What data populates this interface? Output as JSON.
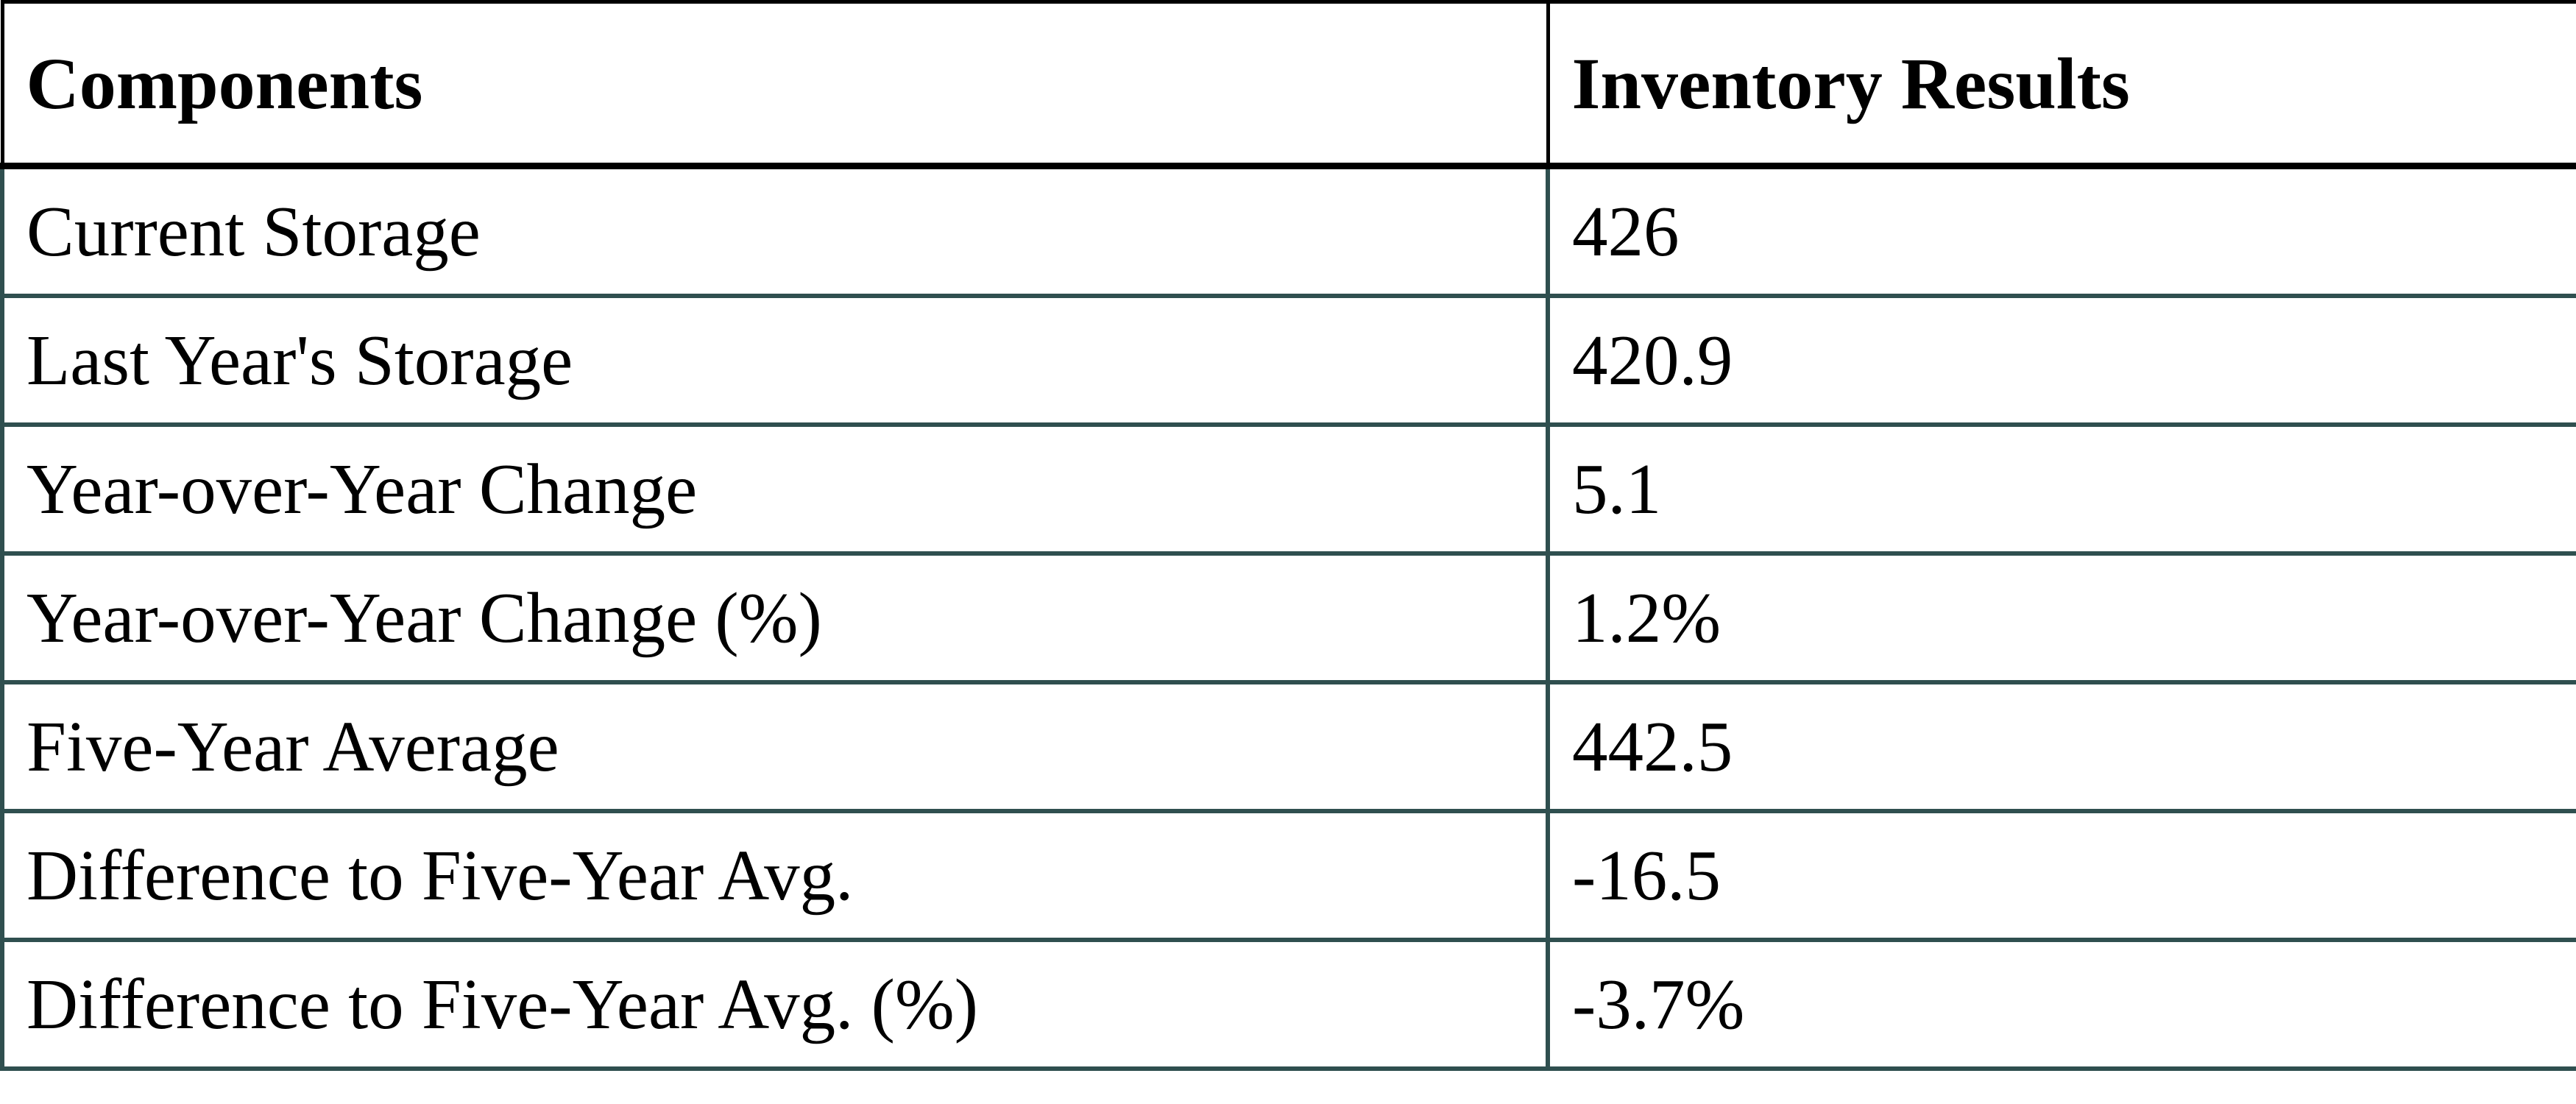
{
  "table": {
    "header": {
      "col1": "Components",
      "col2": "Inventory Results"
    },
    "rows": [
      {
        "label": "Current Storage",
        "value": "426"
      },
      {
        "label": "Last Year's Storage",
        "value": "420.9"
      },
      {
        "label": "Year-over-Year Change",
        "value": "5.1"
      },
      {
        "label": "Year-over-Year Change (%)",
        "value": "1.2%"
      },
      {
        "label": "Five-Year Average",
        "value": "442.5"
      },
      {
        "label": "Difference to Five-Year Avg.",
        "value": "-16.5"
      },
      {
        "label": "Difference to Five-Year Avg. (%)",
        "value": "-3.7%"
      }
    ],
    "style": {
      "header_border_color": "#000000",
      "body_border_color": "#2F4F4F",
      "text_color": "#000000",
      "background_color": "#FFFFFF"
    }
  },
  "chart_data": {
    "type": "table",
    "title": "Inventory Results",
    "columns": [
      "Components",
      "Inventory Results"
    ],
    "rows": [
      [
        "Current Storage",
        426
      ],
      [
        "Last Year's Storage",
        420.9
      ],
      [
        "Year-over-Year Change",
        5.1
      ],
      [
        "Year-over-Year Change (%)",
        "1.2%"
      ],
      [
        "Five-Year Average",
        442.5
      ],
      [
        "Difference to Five-Year Avg.",
        -16.5
      ],
      [
        "Difference to Five-Year Avg. (%)",
        "-3.7%"
      ]
    ]
  }
}
